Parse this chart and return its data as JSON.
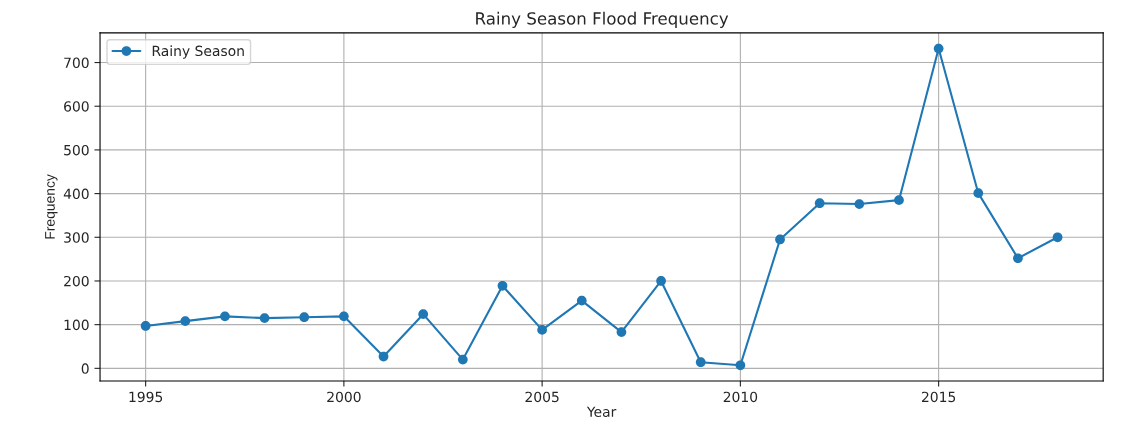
{
  "chart_data": {
    "type": "line",
    "title": "Rainy Season Flood Frequency",
    "xlabel": "Year",
    "ylabel": "Frequency",
    "x": [
      1995,
      1996,
      1997,
      1998,
      1999,
      2000,
      2001,
      2002,
      2003,
      2004,
      2005,
      2006,
      2007,
      2008,
      2009,
      2010,
      2011,
      2012,
      2013,
      2014,
      2015,
      2016,
      2017,
      2018
    ],
    "series": [
      {
        "name": "Rainy Season",
        "color": "#1f77b4",
        "values": [
          97,
          108,
          119,
          115,
          117,
          119,
          27,
          124,
          20,
          189,
          88,
          155,
          83,
          200,
          14,
          7,
          295,
          378,
          376,
          385,
          732,
          401,
          252,
          300
        ]
      }
    ],
    "xlim": [
      1993.85,
      2019.15
    ],
    "xticks": [
      1995,
      2000,
      2005,
      2010,
      2015
    ],
    "ylim": [
      -29,
      768
    ],
    "yticks": [
      0,
      100,
      200,
      300,
      400,
      500,
      600,
      700
    ],
    "grid": true,
    "legend": "top left",
    "marker": "circle",
    "line_style": "solid"
  }
}
